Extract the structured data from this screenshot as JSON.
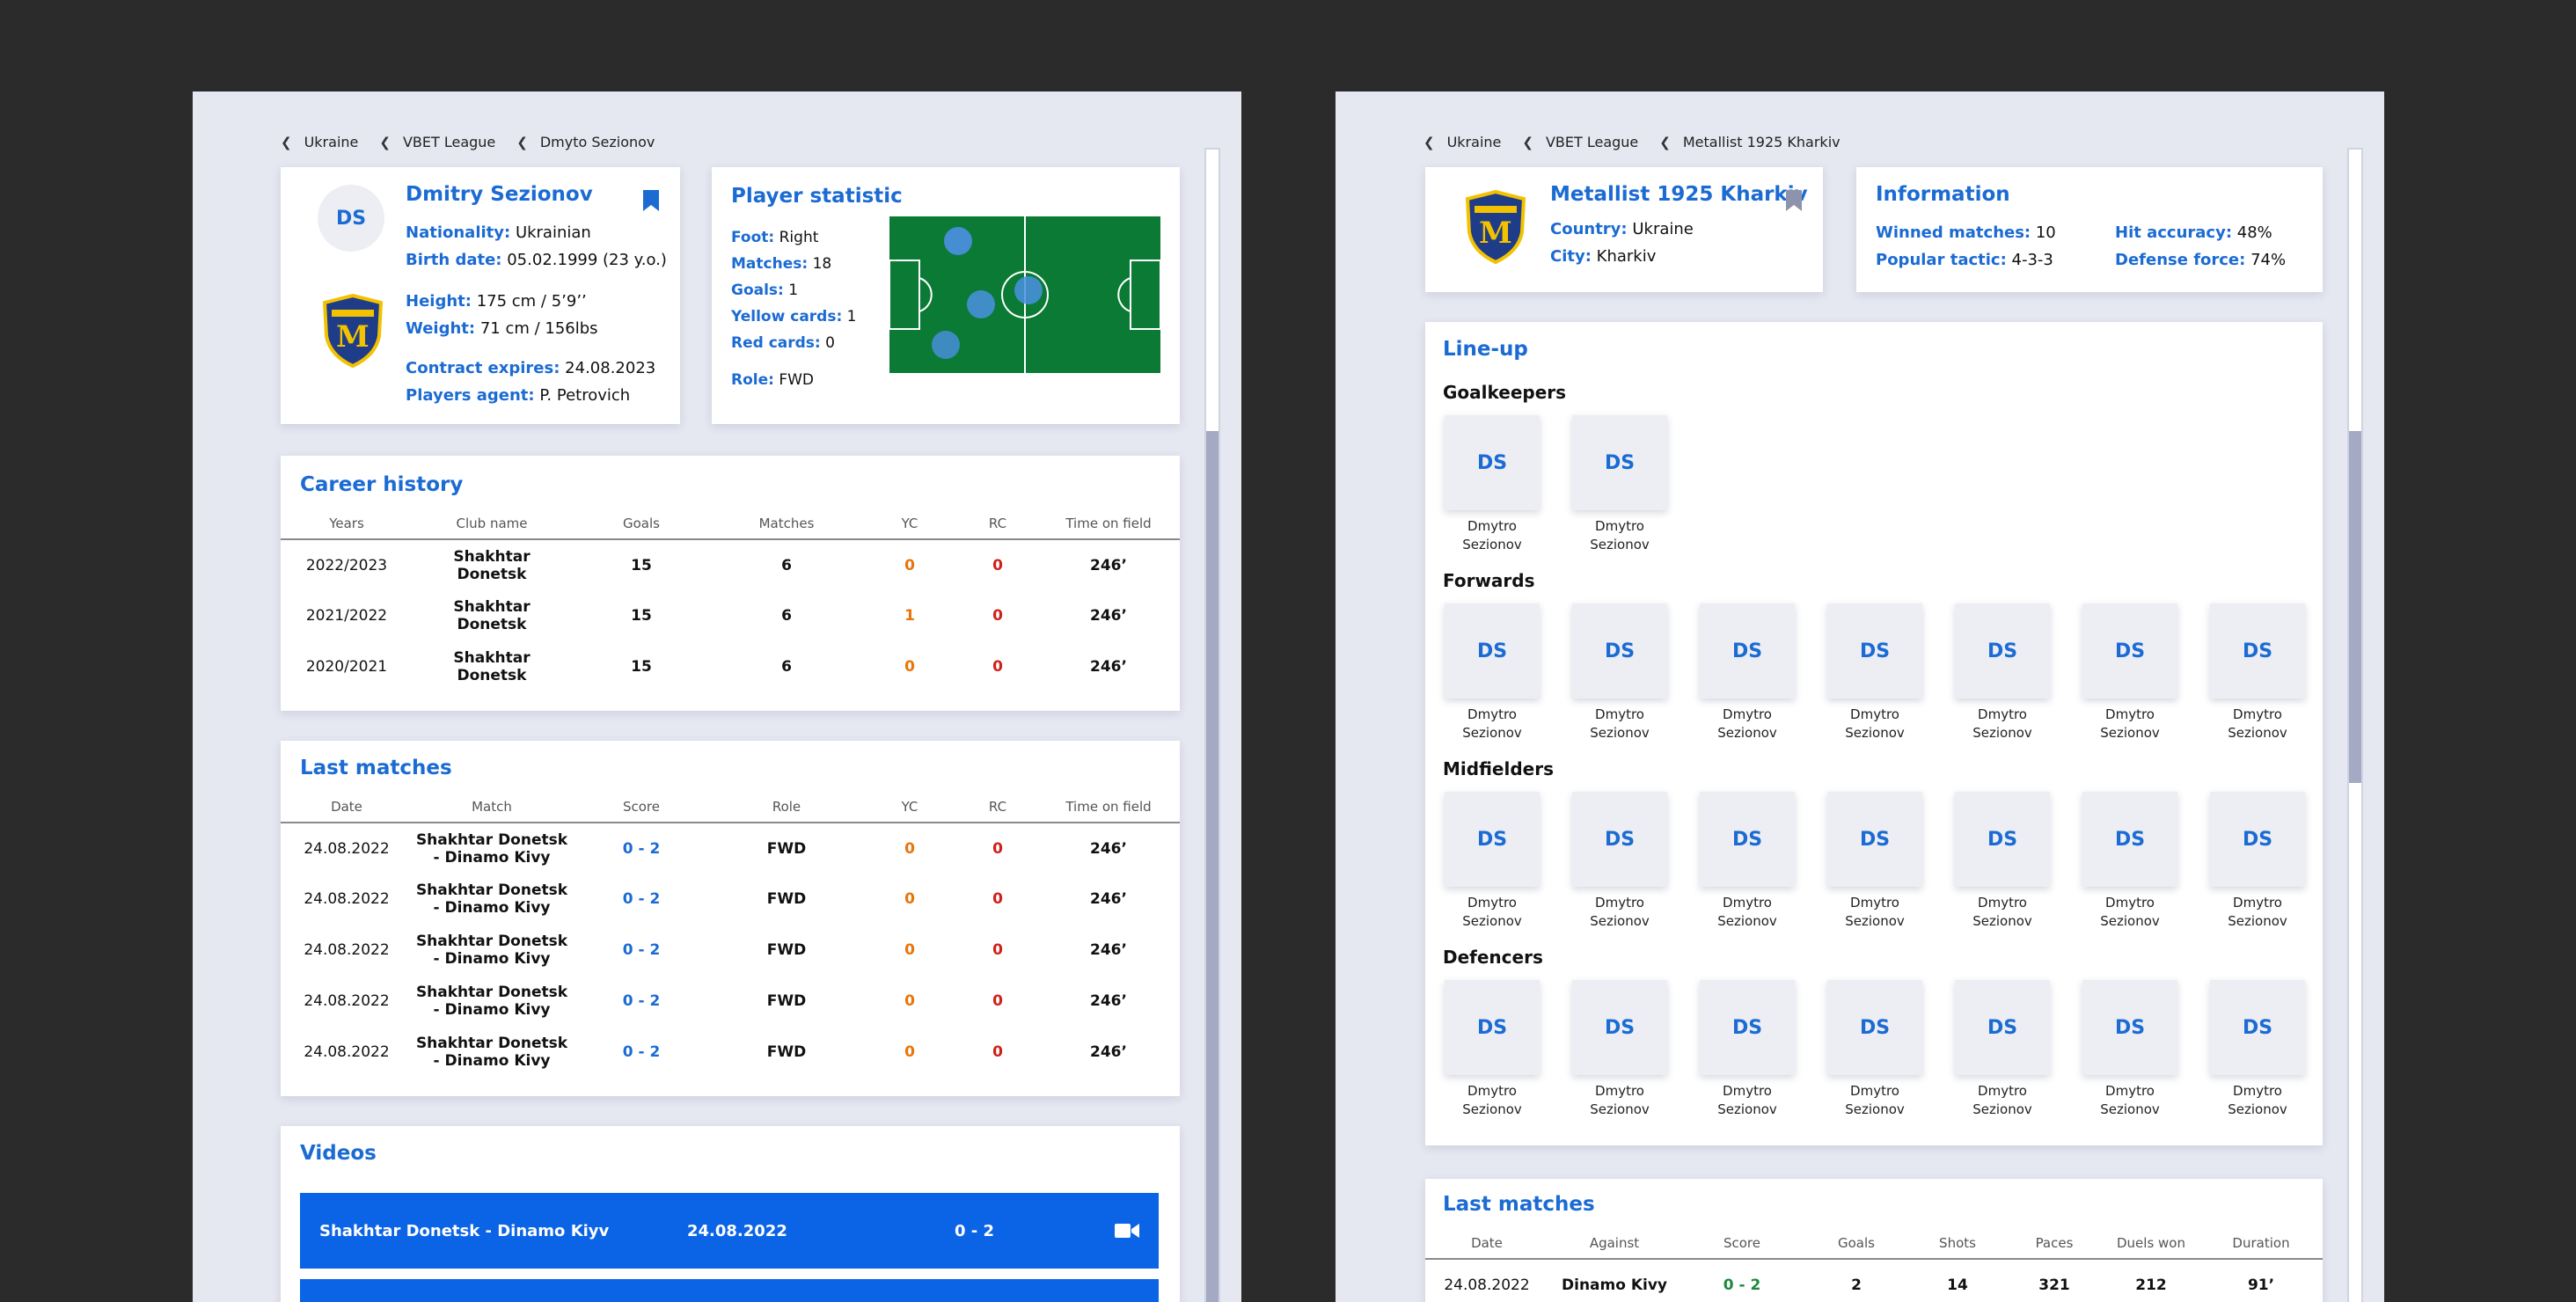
{
  "left": {
    "breadcrumbs": [
      "Ukraine",
      "VBET League",
      "Dmyto Sezionov"
    ],
    "player": {
      "initials": "DS",
      "name": "Dmitry Sezionov",
      "nationality_label": "Nationality:",
      "nationality": "Ukrainian",
      "birth_label": "Birth date:",
      "birth": "05.02.1999 (23 y.o.)",
      "height_label": "Height:",
      "height": "175 cm / 5’9’’",
      "weight_label": "Weight:",
      "weight": "71 cm / 156lbs",
      "contract_label": "Contract expires:",
      "contract": "24.08.2023",
      "agent_label": "Players agent:",
      "agent": "P. Petrovich",
      "club_crest_letter": "M"
    },
    "statistic": {
      "title": "Player statistic",
      "foot_label": "Foot:",
      "foot": "Right",
      "matches_label": "Matches:",
      "matches": "18",
      "goals_label": "Goals:",
      "goals": "1",
      "yellow_label": "Yellow cards:",
      "yellow": "1",
      "red_label": "Red cards:",
      "red": "0",
      "role_label": "Role:",
      "role": "FWD"
    },
    "career": {
      "title": "Career history",
      "headers": [
        "Years",
        "Club name",
        "Goals",
        "Matches",
        "YC",
        "RC",
        "Time on field"
      ],
      "rows": [
        {
          "years": "2022/2023",
          "club1": "Shakhtar",
          "club2": "Donetsk",
          "goals": "15",
          "matches": "6",
          "yc": "0",
          "rc": "0",
          "time": "246’"
        },
        {
          "years": "2021/2022",
          "club1": "Shakhtar",
          "club2": "Donetsk",
          "goals": "15",
          "matches": "6",
          "yc": "1",
          "rc": "0",
          "time": "246’"
        },
        {
          "years": "2020/2021",
          "club1": "Shakhtar",
          "club2": "Donetsk",
          "goals": "15",
          "matches": "6",
          "yc": "0",
          "rc": "0",
          "time": "246’"
        }
      ]
    },
    "last_matches": {
      "title": "Last matches",
      "headers": [
        "Date",
        "Match",
        "Score",
        "Role",
        "YC",
        "RC",
        "Time on field"
      ],
      "rows": [
        {
          "date": "24.08.2022",
          "m1": "Shakhtar Donetsk",
          "m2": "- Dinamo Kivy",
          "score": "0 - 2",
          "role": "FWD",
          "yc": "0",
          "rc": "0",
          "time": "246’"
        },
        {
          "date": "24.08.2022",
          "m1": "Shakhtar Donetsk",
          "m2": "- Dinamo Kivy",
          "score": "0 - 2",
          "role": "FWD",
          "yc": "0",
          "rc": "0",
          "time": "246’"
        },
        {
          "date": "24.08.2022",
          "m1": "Shakhtar Donetsk",
          "m2": "- Dinamo Kivy",
          "score": "0 - 2",
          "role": "FWD",
          "yc": "0",
          "rc": "0",
          "time": "246’"
        },
        {
          "date": "24.08.2022",
          "m1": "Shakhtar Donetsk",
          "m2": "- Dinamo Kivy",
          "score": "0 - 2",
          "role": "FWD",
          "yc": "0",
          "rc": "0",
          "time": "246’"
        },
        {
          "date": "24.08.2022",
          "m1": "Shakhtar Donetsk",
          "m2": "- Dinamo Kivy",
          "score": "0 - 2",
          "role": "FWD",
          "yc": "0",
          "rc": "0",
          "time": "246’"
        }
      ]
    },
    "videos": {
      "title": "Videos",
      "items": [
        {
          "match": "Shakhtar Donetsk - Dinamo Kiyv",
          "date": "24.08.2022",
          "score": "0 - 2"
        }
      ]
    }
  },
  "right": {
    "breadcrumbs": [
      "Ukraine",
      "VBET League",
      "Metallist 1925 Kharkiv"
    ],
    "club": {
      "name": "Metallist 1925 Kharkiv",
      "country_label": "Country:",
      "country": "Ukraine",
      "city_label": "City:",
      "city": "Kharkiv",
      "crest_letter": "M"
    },
    "information": {
      "title": "Information",
      "winned_label": "Winned matches:",
      "winned": "10",
      "tactic_label": "Popular tactic:",
      "tactic": "4-3-3",
      "accuracy_label": "Hit accuracy:",
      "accuracy": "48%",
      "defense_label": "Defense force:",
      "defense": "74%"
    },
    "lineup": {
      "title": "Line-up",
      "tile_initials": "DS",
      "first_name": "Dmytro",
      "last_name": "Sezionov",
      "groups": [
        {
          "title": "Goalkeepers",
          "count": 2
        },
        {
          "title": "Forwards",
          "count": 7
        },
        {
          "title": "Midfielders",
          "count": 7
        },
        {
          "title": "Defencers",
          "count": 7
        }
      ]
    },
    "last_matches": {
      "title": "Last matches",
      "headers": [
        "Date",
        "Against",
        "Score",
        "Goals",
        "Shots",
        "Paces",
        "Duels won",
        "Duration"
      ],
      "rows": [
        {
          "date": "24.08.2022",
          "against": "Dinamo Kivy",
          "score": "0 - 2",
          "goals": "2",
          "shots": "14",
          "paces": "321",
          "duels": "212",
          "duration": "91’"
        }
      ]
    }
  },
  "colors": {
    "accent": "#1b6bd3",
    "video_bar": "#0b63e5",
    "pitch": "#0a7a35",
    "yc": "#e8750a",
    "rc": "#d0201a"
  }
}
